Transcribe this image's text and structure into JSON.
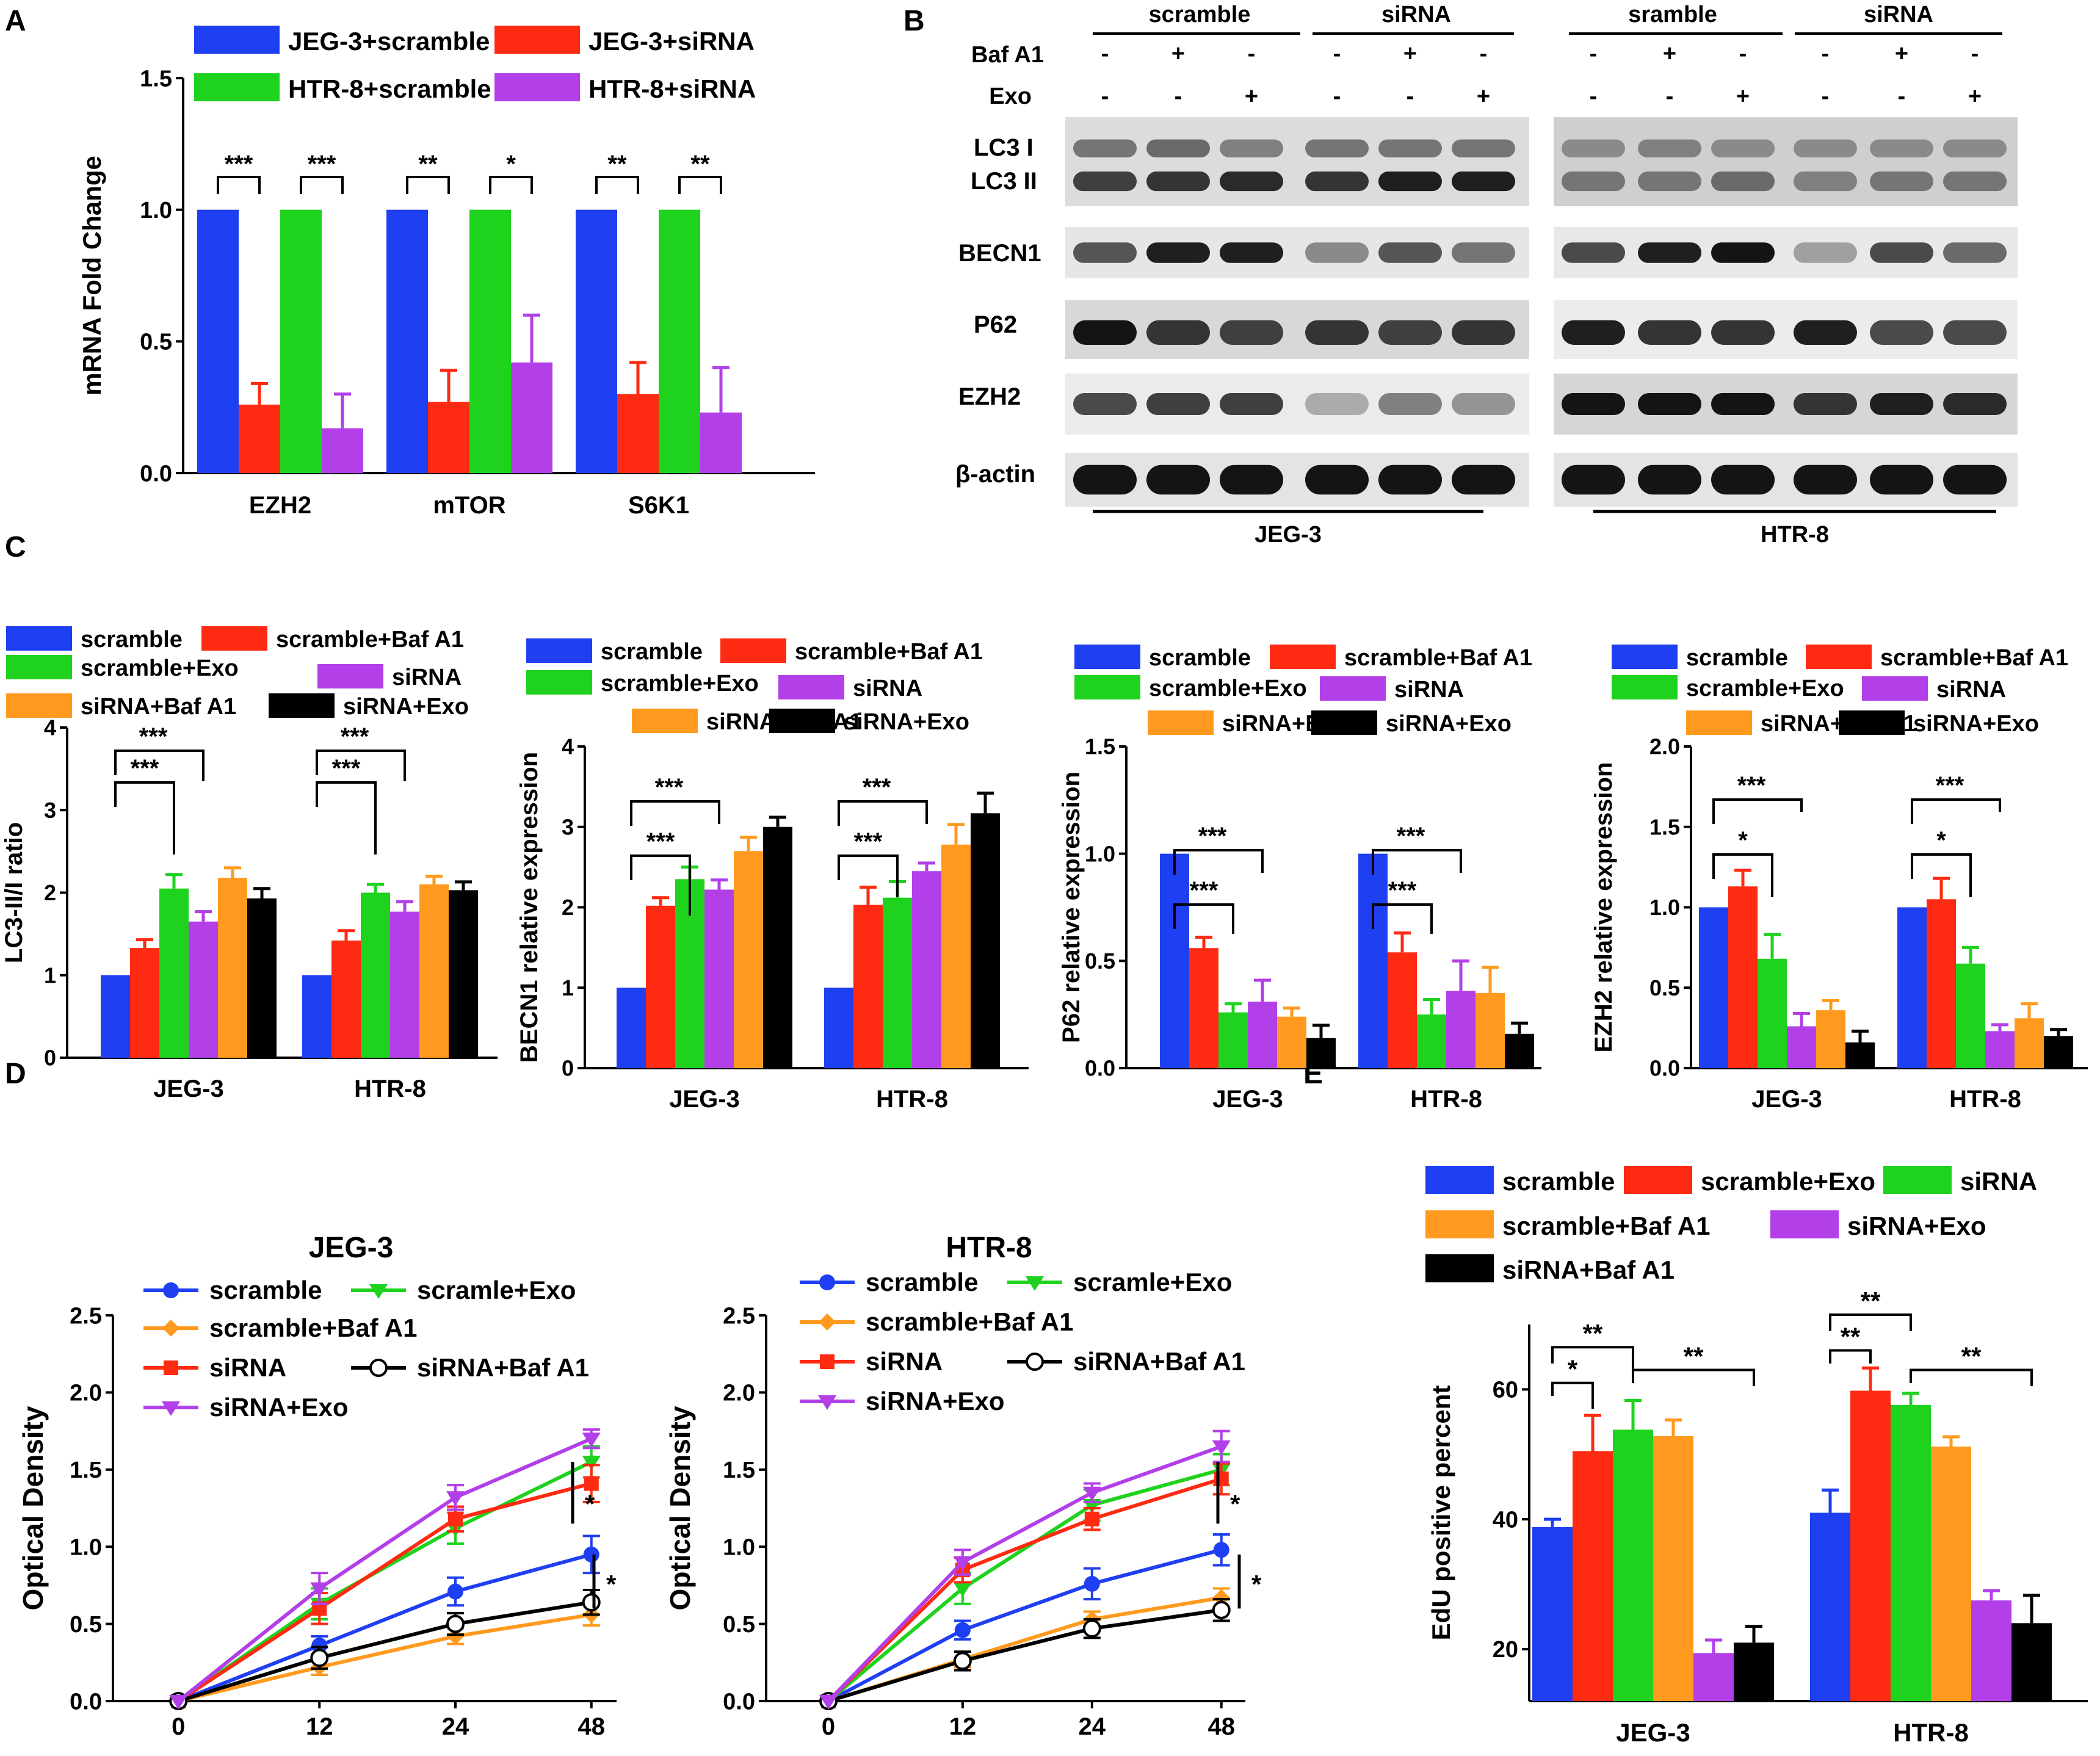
{
  "colors": {
    "blue": "#1f3ff2",
    "red": "#ff2a12",
    "green": "#1ed21e",
    "purple": "#b23fe8",
    "orange": "#ff9a1e",
    "black": "#000000"
  },
  "panel_labels": [
    "A",
    "B",
    "C",
    "D",
    "E"
  ],
  "blot": {
    "groups_top": [
      "scramble",
      "siRNA",
      "sramble",
      "siRNA"
    ],
    "row_labels": [
      "Baf A1",
      "Exo"
    ],
    "baf_signs": [
      "-",
      "+",
      "-",
      "-",
      "+",
      "-",
      "-",
      "+",
      "-",
      "-",
      "+",
      "-"
    ],
    "exo_signs": [
      "-",
      "-",
      "+",
      "-",
      "-",
      "+",
      "-",
      "-",
      "+",
      "-",
      "-",
      "+"
    ],
    "band_labels": [
      "LC3 I",
      "LC3 II",
      "BECN1",
      "P62",
      "EZH2",
      "β-actin"
    ],
    "cell_lines": [
      "JEG-3",
      "HTR-8"
    ]
  },
  "chart_data": [
    {
      "id": "A",
      "type": "bar",
      "categories": [
        "EZH2",
        "mTOR",
        "S6K1"
      ],
      "series": [
        {
          "name": "JEG-3+scramble",
          "color": "blue",
          "values": [
            1.0,
            1.0,
            1.0
          ],
          "err": [
            0,
            0,
            0
          ]
        },
        {
          "name": "JEG-3+siRNA",
          "color": "red",
          "values": [
            0.26,
            0.27,
            0.3
          ],
          "err": [
            0.08,
            0.12,
            0.12
          ]
        },
        {
          "name": "HTR-8+scramble",
          "color": "green",
          "values": [
            1.0,
            1.0,
            1.0
          ],
          "err": [
            0,
            0,
            0
          ]
        },
        {
          "name": "HTR-8+siRNA",
          "color": "purple",
          "values": [
            0.17,
            0.42,
            0.23
          ],
          "err": [
            0.13,
            0.18,
            0.17
          ]
        }
      ],
      "ylabel": "mRNA Fold Change",
      "ylim": [
        0,
        1.5
      ],
      "yticks": [
        "0.0",
        "0.5",
        "1.0",
        "1.5"
      ],
      "significance": [
        "***",
        "***",
        "**",
        "*",
        "**",
        "**"
      ]
    },
    {
      "id": "C1",
      "type": "bar",
      "categories": [
        "JEG-3",
        "HTR-8"
      ],
      "series": [
        {
          "name": "scramble",
          "color": "blue",
          "values": [
            1.0,
            1.0
          ],
          "err": [
            0,
            0
          ]
        },
        {
          "name": "scramble+Baf A1",
          "color": "red",
          "values": [
            1.33,
            1.42
          ],
          "err": [
            0.1,
            0.12
          ]
        },
        {
          "name": "scramble+Exo",
          "color": "green",
          "values": [
            2.05,
            2.0
          ],
          "err": [
            0.17,
            0.1
          ]
        },
        {
          "name": "siRNA",
          "color": "purple",
          "values": [
            1.65,
            1.77
          ],
          "err": [
            0.12,
            0.12
          ]
        },
        {
          "name": "siRNA+Baf A1",
          "color": "orange",
          "values": [
            2.18,
            2.1
          ],
          "err": [
            0.12,
            0.1
          ]
        },
        {
          "name": "siRNA+Exo",
          "color": "black",
          "values": [
            1.93,
            2.03
          ],
          "err": [
            0.12,
            0.1
          ]
        }
      ],
      "ylabel": "LC3-II/I ratio",
      "ylim": [
        0,
        4
      ],
      "yticks": [
        "0",
        "1",
        "2",
        "3",
        "4"
      ],
      "significance": [
        "***",
        "***",
        "***",
        "***"
      ]
    },
    {
      "id": "C2",
      "type": "bar",
      "categories": [
        "JEG-3",
        "HTR-8"
      ],
      "series": [
        {
          "name": "scramble",
          "color": "blue",
          "values": [
            1.0,
            1.0
          ],
          "err": [
            0,
            0
          ]
        },
        {
          "name": "scramble+Baf A1",
          "color": "red",
          "values": [
            2.02,
            2.03
          ],
          "err": [
            0.1,
            0.22
          ]
        },
        {
          "name": "scramble+Exo",
          "color": "green",
          "values": [
            2.35,
            2.12
          ],
          "err": [
            0.15,
            0.2
          ]
        },
        {
          "name": "siRNA",
          "color": "purple",
          "values": [
            2.22,
            2.45
          ],
          "err": [
            0.12,
            0.1
          ]
        },
        {
          "name": "siRNA+Baf A1",
          "color": "orange",
          "values": [
            2.7,
            2.78
          ],
          "err": [
            0.17,
            0.25
          ]
        },
        {
          "name": "siRNA+Exo",
          "color": "black",
          "values": [
            3.0,
            3.17
          ],
          "err": [
            0.12,
            0.25
          ]
        }
      ],
      "ylabel": "BECN1 relative expression",
      "ylim": [
        0,
        4
      ],
      "yticks": [
        "0",
        "1",
        "2",
        "3",
        "4"
      ],
      "significance": [
        "***",
        "***",
        "***",
        "***"
      ]
    },
    {
      "id": "C3",
      "type": "bar",
      "categories": [
        "JEG-3",
        "HTR-8"
      ],
      "series": [
        {
          "name": "scramble",
          "color": "blue",
          "values": [
            1.0,
            1.0
          ],
          "err": [
            0,
            0
          ]
        },
        {
          "name": "scramble+Baf A1",
          "color": "red",
          "values": [
            0.56,
            0.54
          ],
          "err": [
            0.05,
            0.09
          ]
        },
        {
          "name": "scramble+Exo",
          "color": "green",
          "values": [
            0.26,
            0.25
          ],
          "err": [
            0.04,
            0.07
          ]
        },
        {
          "name": "siRNA",
          "color": "purple",
          "values": [
            0.31,
            0.36
          ],
          "err": [
            0.1,
            0.14
          ]
        },
        {
          "name": "siRNA+Baf A1",
          "color": "orange",
          "values": [
            0.24,
            0.35
          ],
          "err": [
            0.04,
            0.12
          ]
        },
        {
          "name": "siRNA+Exo",
          "color": "black",
          "values": [
            0.14,
            0.16
          ],
          "err": [
            0.06,
            0.05
          ]
        }
      ],
      "ylabel": "P62 relative expression",
      "ylim": [
        0,
        1.5
      ],
      "yticks": [
        "0.0",
        "0.5",
        "1.0",
        "1.5"
      ],
      "significance": [
        "***",
        "***",
        "***",
        "***"
      ]
    },
    {
      "id": "C4",
      "type": "bar",
      "categories": [
        "JEG-3",
        "HTR-8"
      ],
      "series": [
        {
          "name": "scramble",
          "color": "blue",
          "values": [
            1.0,
            1.0
          ],
          "err": [
            0,
            0
          ]
        },
        {
          "name": "scramble+Baf A1",
          "color": "red",
          "values": [
            1.13,
            1.05
          ],
          "err": [
            0.1,
            0.13
          ]
        },
        {
          "name": "scramble+Exo",
          "color": "green",
          "values": [
            0.68,
            0.65
          ],
          "err": [
            0.15,
            0.1
          ]
        },
        {
          "name": "siRNA",
          "color": "purple",
          "values": [
            0.26,
            0.23
          ],
          "err": [
            0.08,
            0.04
          ]
        },
        {
          "name": "siRNA+Baf A1",
          "color": "orange",
          "values": [
            0.36,
            0.31
          ],
          "err": [
            0.06,
            0.09
          ]
        },
        {
          "name": "siRNA+Exo",
          "color": "black",
          "values": [
            0.16,
            0.2
          ],
          "err": [
            0.07,
            0.04
          ]
        }
      ],
      "ylabel": "EZH2 relative expression",
      "ylim": [
        0,
        2.0
      ],
      "yticks": [
        "0.0",
        "0.5",
        "1.0",
        "1.5",
        "2.0"
      ],
      "significance": [
        "*",
        "***",
        "*",
        "***"
      ]
    },
    {
      "id": "D1",
      "type": "line",
      "title": "JEG-3",
      "x": [
        0,
        12,
        24,
        48
      ],
      "xticks": [
        "0",
        "12",
        "24",
        "48"
      ],
      "series": [
        {
          "name": "scramble",
          "color": "blue",
          "marker": "circle",
          "values": [
            0,
            0.36,
            0.71,
            0.95
          ],
          "err": [
            0,
            0.06,
            0.09,
            0.12
          ]
        },
        {
          "name": "scramle+Exo",
          "color": "green",
          "marker": "tri-down",
          "values": [
            0,
            0.63,
            1.12,
            1.55
          ],
          "err": [
            0,
            0.1,
            0.1,
            0.1
          ]
        },
        {
          "name": "scramble+Baf A1",
          "color": "orange",
          "marker": "diamond",
          "values": [
            0,
            0.22,
            0.42,
            0.56
          ],
          "err": [
            0,
            0.05,
            0.05,
            0.07
          ]
        },
        {
          "name": "siRNA",
          "color": "red",
          "marker": "square",
          "values": [
            0,
            0.6,
            1.18,
            1.41
          ],
          "err": [
            0,
            0.1,
            0.08,
            0.12
          ]
        },
        {
          "name": "siRNA+Baf A1",
          "color": "black",
          "marker": "open-circle",
          "values": [
            0,
            0.28,
            0.5,
            0.64
          ],
          "err": [
            0,
            0.07,
            0.07,
            0.08
          ]
        },
        {
          "name": "siRNA+Exo",
          "color": "purple",
          "marker": "tri-down",
          "values": [
            0,
            0.73,
            1.32,
            1.7
          ],
          "err": [
            0,
            0.1,
            0.08,
            0.06
          ]
        }
      ],
      "ylabel": "Optical Density",
      "ylim": [
        0,
        2.5
      ],
      "yticks": [
        "0.0",
        "0.5",
        "1.0",
        "1.5",
        "2.0",
        "2.5"
      ],
      "significance": [
        "*",
        "*"
      ]
    },
    {
      "id": "D2",
      "type": "line",
      "title": "HTR-8",
      "x": [
        0,
        12,
        24,
        48
      ],
      "xticks": [
        "0",
        "12",
        "24",
        "48"
      ],
      "series": [
        {
          "name": "scramble",
          "color": "blue",
          "marker": "circle",
          "values": [
            0,
            0.46,
            0.76,
            0.98
          ],
          "err": [
            0,
            0.06,
            0.1,
            0.1
          ]
        },
        {
          "name": "scramle+Exo",
          "color": "green",
          "marker": "tri-down",
          "values": [
            0,
            0.73,
            1.27,
            1.5
          ],
          "err": [
            0,
            0.1,
            0.1,
            0.1
          ]
        },
        {
          "name": "scramble+Baf A1",
          "color": "orange",
          "marker": "diamond",
          "values": [
            0,
            0.27,
            0.53,
            0.67
          ],
          "err": [
            0,
            0.05,
            0.05,
            0.06
          ]
        },
        {
          "name": "siRNA",
          "color": "red",
          "marker": "square",
          "values": [
            0,
            0.85,
            1.18,
            1.44
          ],
          "err": [
            0,
            0.08,
            0.07,
            0.1
          ]
        },
        {
          "name": "siRNA+Baf A1",
          "color": "black",
          "marker": "open-circle",
          "values": [
            0,
            0.26,
            0.47,
            0.59
          ],
          "err": [
            0,
            0.06,
            0.06,
            0.07
          ]
        },
        {
          "name": "siRNA+Exo",
          "color": "purple",
          "marker": "tri-down",
          "values": [
            0,
            0.9,
            1.35,
            1.65
          ],
          "err": [
            0,
            0.08,
            0.06,
            0.1
          ]
        }
      ],
      "ylabel": "Optical Density",
      "ylim": [
        0,
        2.5
      ],
      "yticks": [
        "0.0",
        "0.5",
        "1.0",
        "1.5",
        "2.0",
        "2.5"
      ],
      "significance": [
        "*",
        "*"
      ]
    },
    {
      "id": "E",
      "type": "bar",
      "categories": [
        "JEG-3",
        "HTR-8"
      ],
      "series": [
        {
          "name": "scramble",
          "color": "blue",
          "values": [
            38.8,
            41.0
          ],
          "err": [
            1.2,
            3.5
          ]
        },
        {
          "name": "scramble+Exo",
          "color": "red",
          "values": [
            50.5,
            59.8
          ],
          "err": [
            5.5,
            3.5
          ]
        },
        {
          "name": "siRNA",
          "color": "green",
          "values": [
            53.8,
            57.6
          ],
          "err": [
            4.5,
            1.8
          ]
        },
        {
          "name": "scramble+Baf A1",
          "color": "orange",
          "values": [
            52.8,
            51.2
          ],
          "err": [
            2.5,
            1.5
          ]
        },
        {
          "name": "siRNA+Exo",
          "color": "purple",
          "values": [
            19.4,
            27.5
          ],
          "err": [
            2.0,
            1.5
          ]
        },
        {
          "name": "siRNA+Baf A1",
          "color": "black",
          "values": [
            21.0,
            24.0
          ],
          "err": [
            2.5,
            4.3
          ]
        }
      ],
      "ylabel": "EdU positive percent",
      "ylim": [
        12,
        70
      ],
      "yticks": [
        "20",
        "40",
        "60"
      ],
      "ytick_values": [
        20,
        40,
        60
      ],
      "significance": [
        "*",
        "**",
        "**",
        "**",
        "**",
        "**"
      ]
    }
  ]
}
